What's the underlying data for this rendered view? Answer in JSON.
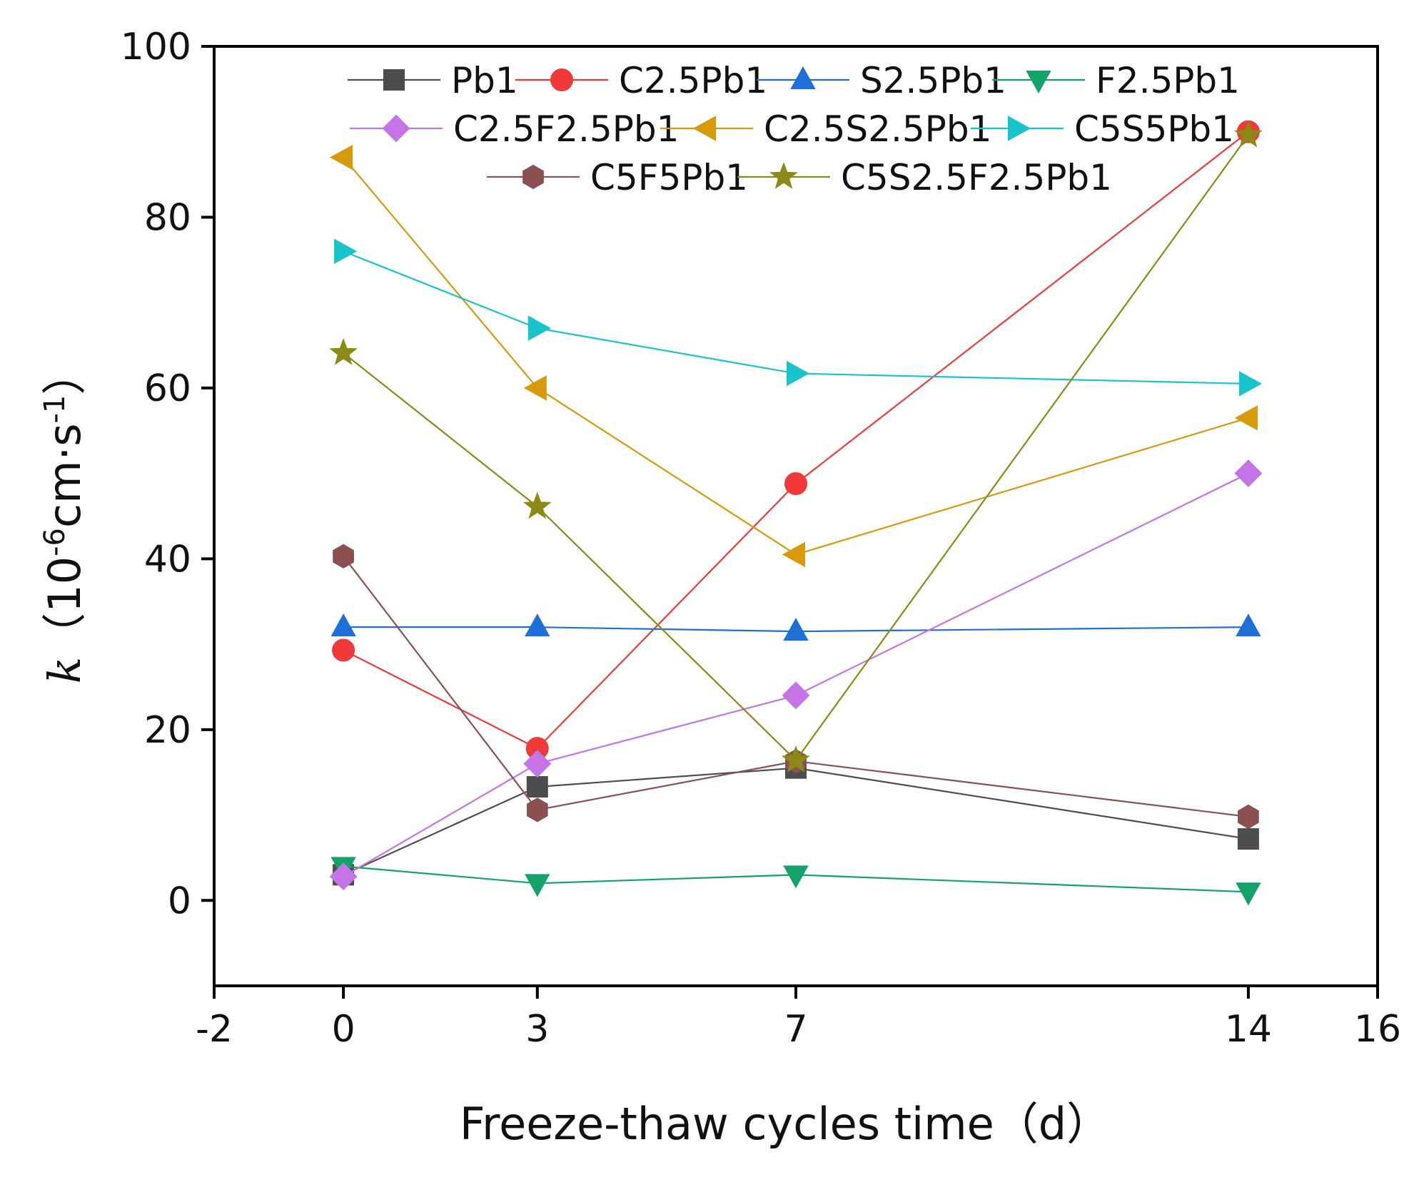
{
  "chart_data": {
    "type": "line",
    "title": "",
    "xlabel": "Freeze-thaw cycles time（d）",
    "ylabel": {
      "var": "k",
      "open": "（",
      "base": "10",
      "exp1": "-6",
      "unit": "cm·s",
      "exp2": "-1",
      "close": "）"
    },
    "xlim": [
      -2,
      16
    ],
    "ylim": [
      -10,
      100
    ],
    "x_ticks": [
      -2,
      0,
      3,
      7,
      14,
      16
    ],
    "y_ticks": [
      0,
      20,
      40,
      60,
      80,
      100
    ],
    "legend_position": "top",
    "x": [
      0,
      3,
      7,
      14
    ],
    "series": [
      {
        "name": "Pb1",
        "color": "#4d4d4d",
        "marker": "square",
        "values": [
          3.0,
          13.3,
          15.5,
          7.2
        ]
      },
      {
        "name": "C2.5Pb1",
        "color": "#f03a3a",
        "marker": "circle",
        "values": [
          29.3,
          17.8,
          48.8,
          90.0
        ]
      },
      {
        "name": "S2.5Pb1",
        "color": "#1f6fd6",
        "marker": "triangle-up",
        "values": [
          32.0,
          32.0,
          31.5,
          32.0
        ]
      },
      {
        "name": "F2.5Pb1",
        "color": "#13a36a",
        "marker": "triangle-down",
        "values": [
          4.0,
          2.0,
          3.0,
          1.0
        ]
      },
      {
        "name": "C2.5F2.5Pb1",
        "color": "#c474e6",
        "marker": "diamond",
        "values": [
          2.8,
          16.0,
          24.0,
          50.0
        ]
      },
      {
        "name": "C2.5S2.5Pb1",
        "color": "#d69a0a",
        "marker": "triangle-left",
        "values": [
          87.0,
          60.0,
          40.5,
          56.5
        ]
      },
      {
        "name": "C5S5Pb1",
        "color": "#18c4cc",
        "marker": "triangle-right",
        "values": [
          76.0,
          67.0,
          61.7,
          60.5
        ]
      },
      {
        "name": "C5F5Pb1",
        "color": "#8a5150",
        "marker": "hexagon",
        "values": [
          40.3,
          10.6,
          16.3,
          9.8
        ]
      },
      {
        "name": "C5S2.5F2.5Pb1",
        "color": "#8a8a14",
        "marker": "star",
        "values": [
          64.1,
          46.1,
          16.4,
          89.6
        ]
      }
    ]
  }
}
